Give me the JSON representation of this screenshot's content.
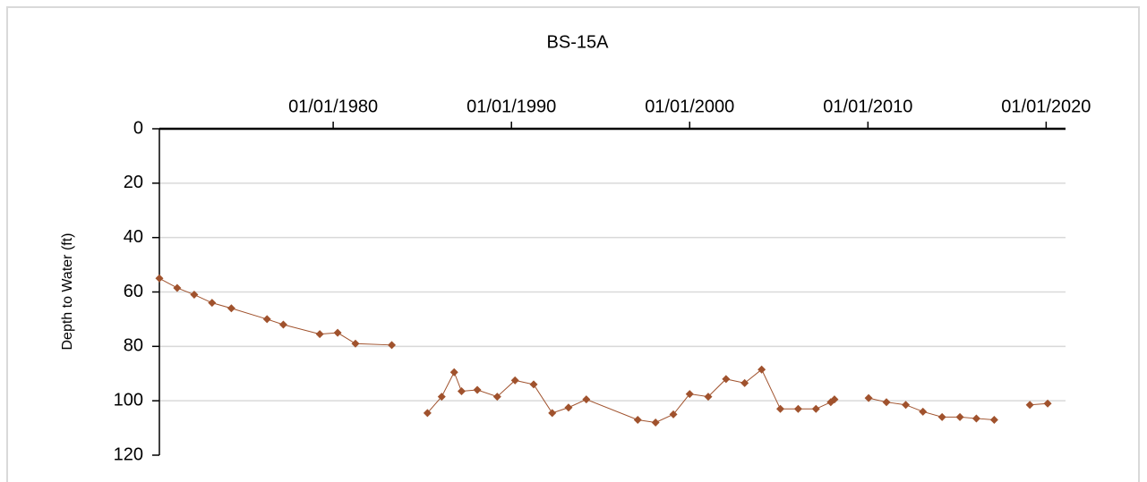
{
  "chart_data": {
    "type": "line",
    "title": "BS-15A",
    "y_label": "Depth to Water (ft)",
    "x": [
      "1970-04-01",
      "1971-04-01",
      "1972-03-15",
      "1973-03-15",
      "1974-04-15",
      "1976-04-15",
      "1977-03-15",
      "1979-04-01",
      "1980-04-01",
      "1981-04-01",
      "1983-04-15",
      null,
      "1985-04-15",
      "1986-02-01",
      "1986-10-15",
      "1987-03-15",
      "1988-02-01",
      "1989-03-15",
      "1990-03-15",
      "1991-04-01",
      "1992-04-15",
      "1993-03-15",
      "1994-03-15",
      "1997-02-01",
      "1998-02-01",
      "1999-02-01",
      "2000-01-01",
      "2001-01-15",
      "2002-01-15",
      "2003-02-01",
      "2004-01-15",
      "2005-02-01",
      "2006-02-01",
      "2007-02-01",
      "2007-12-01",
      "2008-02-15",
      null,
      "2010-01-15",
      "2011-01-15",
      "2012-02-15",
      "2013-02-01",
      "2014-03-01",
      "2015-03-01",
      "2016-02-01",
      "2017-02-01",
      null,
      "2019-02-01",
      "2020-02-01"
    ],
    "series": [
      {
        "color": "#a0522d",
        "values": [
          55,
          58.5,
          61,
          64,
          66,
          70,
          72,
          75.5,
          75,
          79,
          79.5,
          null,
          104.5,
          98.5,
          89.5,
          96.5,
          96,
          98.5,
          92.5,
          94,
          104.5,
          102.5,
          99.5,
          107,
          108,
          105,
          97.5,
          98.5,
          92,
          93.5,
          88.5,
          103,
          103,
          103,
          100.5,
          99.5,
          null,
          99,
          100.5,
          101.5,
          104,
          106,
          106,
          106.5,
          107,
          null,
          101.5,
          101
        ]
      }
    ],
    "xlim": [
      "1970-04-01",
      "2021-02-01"
    ],
    "xticks": [
      {
        "value": "1980-01-01",
        "label": "01/01/1980"
      },
      {
        "value": "1990-01-01",
        "label": "01/01/1990"
      },
      {
        "value": "2000-01-01",
        "label": "01/01/2000"
      },
      {
        "value": "2010-01-01",
        "label": "01/01/2010"
      },
      {
        "value": "2020-01-01",
        "label": "01/01/2020"
      }
    ],
    "ylim": [
      0,
      120
    ],
    "yticks": [
      0,
      20,
      40,
      60,
      80,
      100,
      120
    ],
    "y_reversed": true,
    "grid": true
  }
}
